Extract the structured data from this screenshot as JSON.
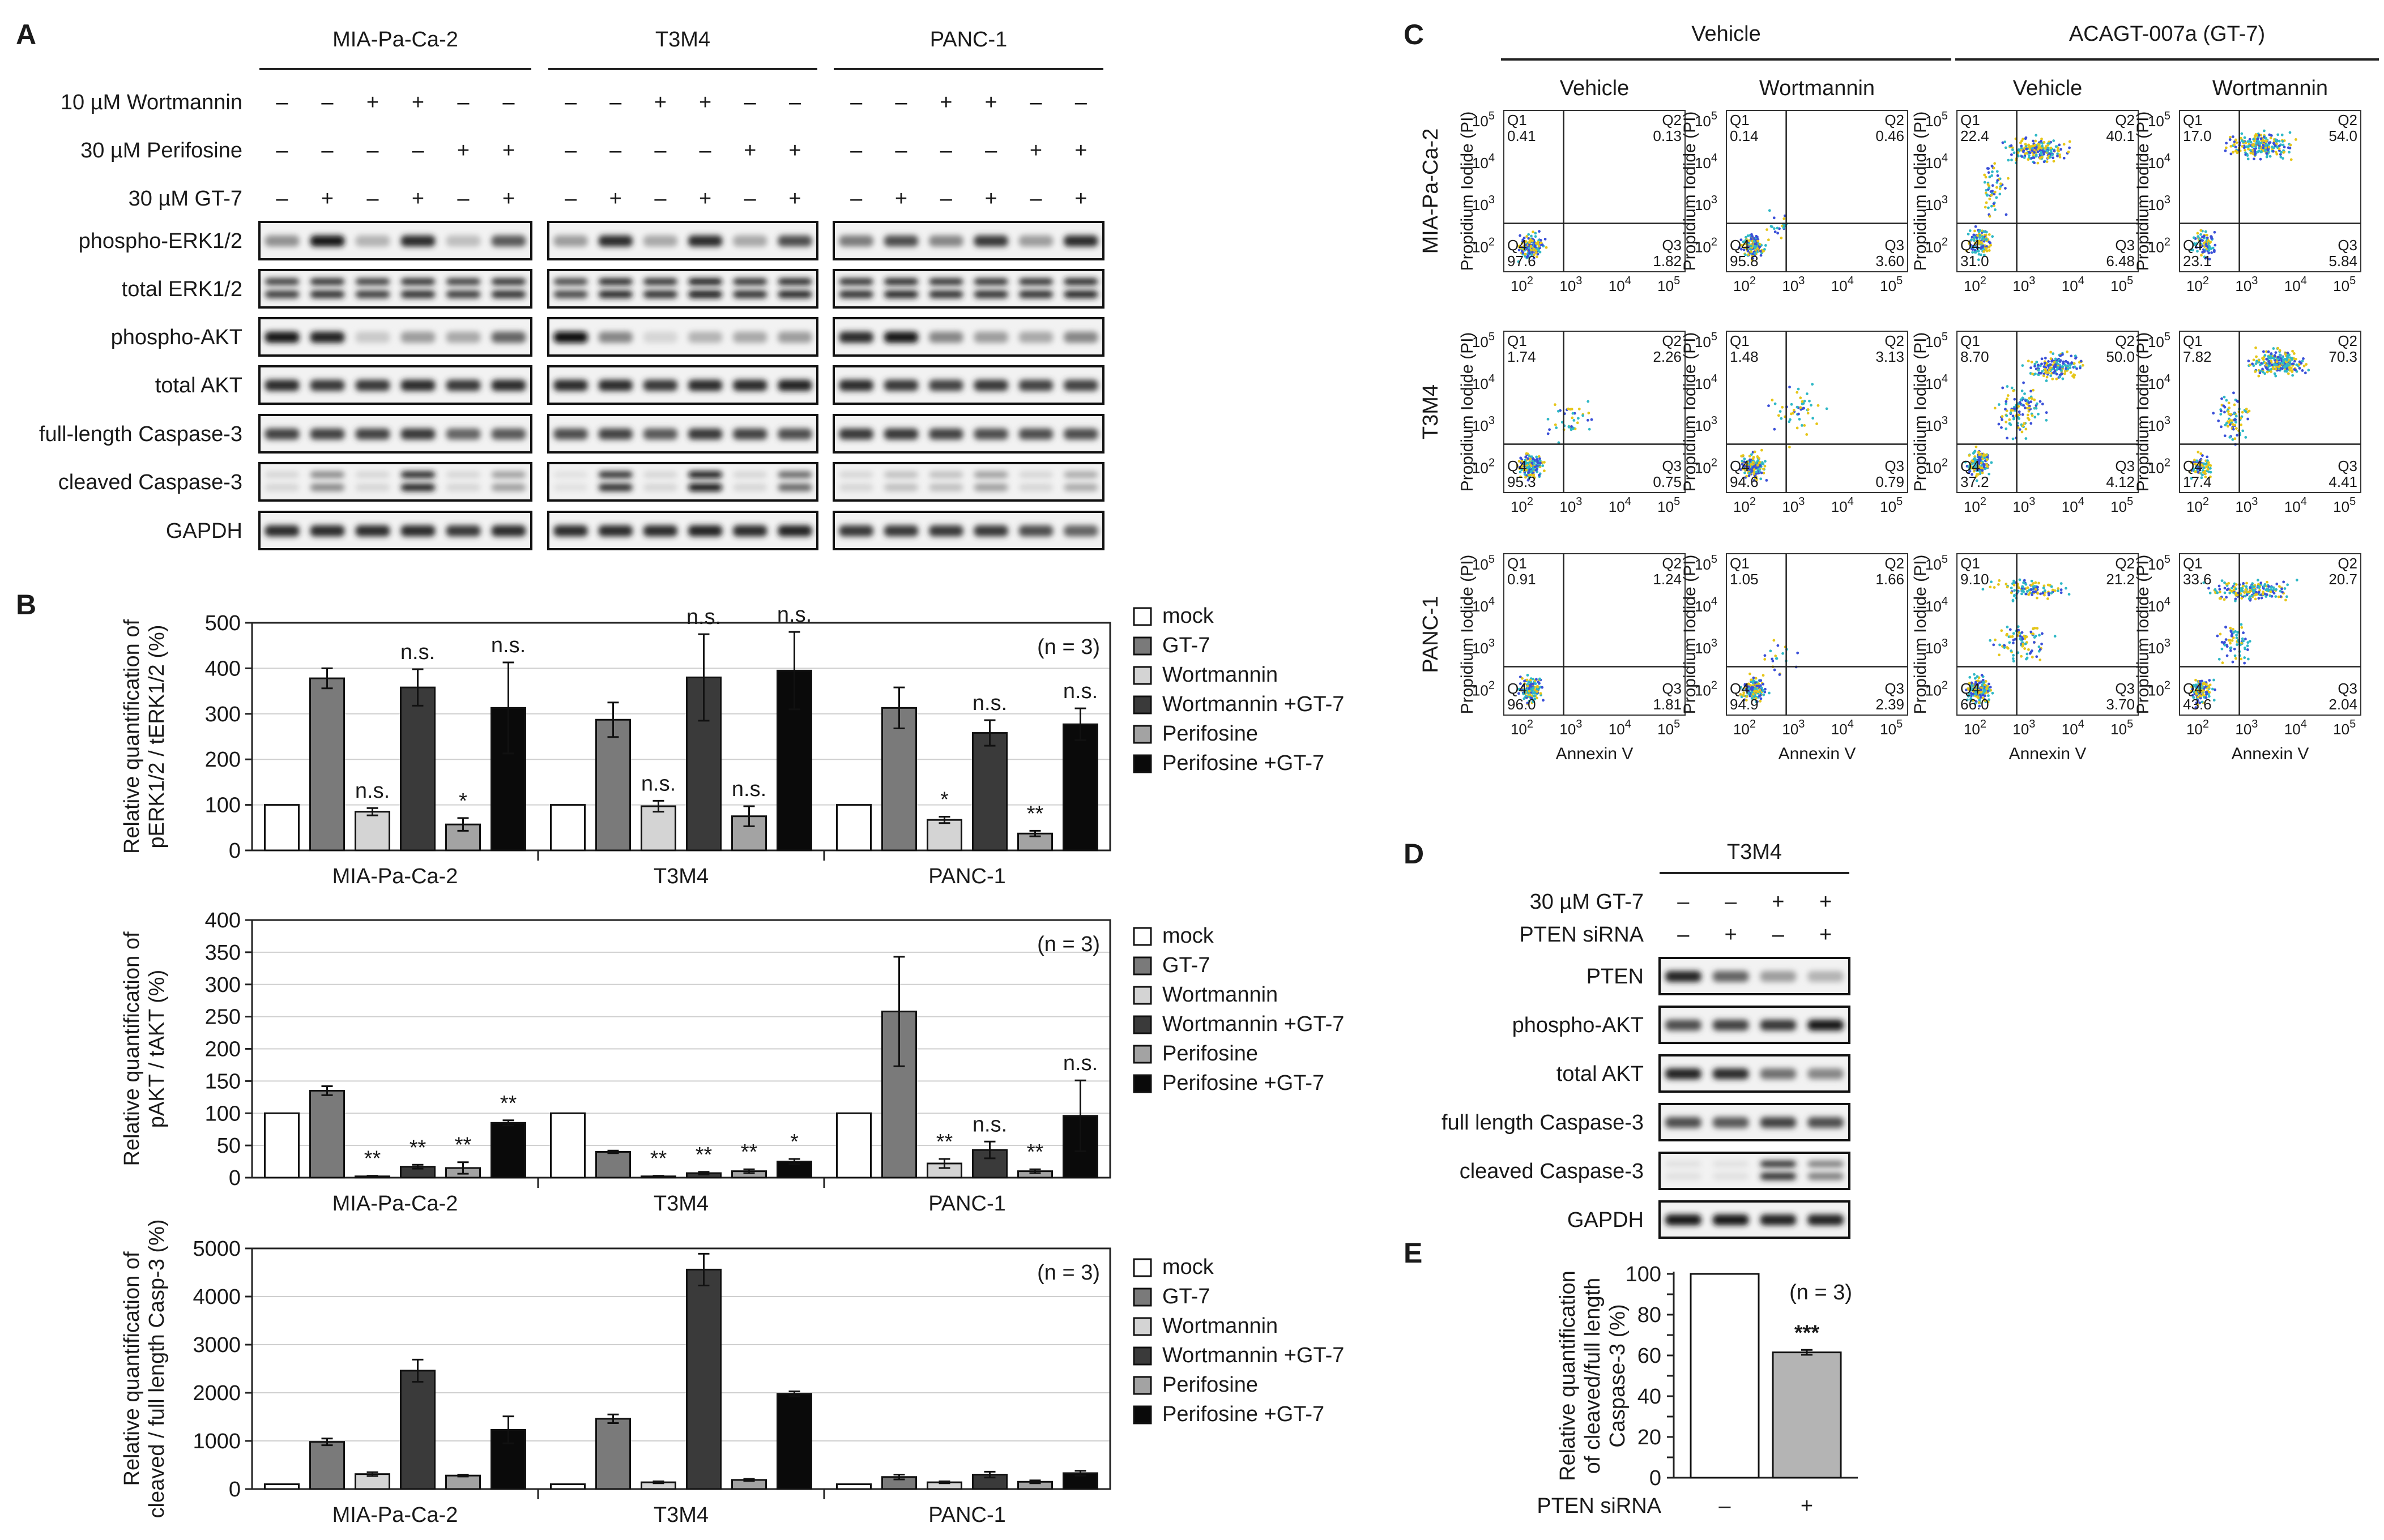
{
  "panel_labels": {
    "a": "A",
    "b": "B",
    "c": "C",
    "d": "D",
    "e": "E"
  },
  "panelA": {
    "cell_lines": [
      "MIA-Pa-Ca-2",
      "T3M4",
      "PANC-1"
    ],
    "treatments": [
      {
        "label": "10 µM Wortmannin",
        "marks": [
          "–",
          "–",
          "+",
          "+",
          "–",
          "–"
        ]
      },
      {
        "label": "30 µM Perifosine",
        "marks": [
          "–",
          "–",
          "–",
          "–",
          "+",
          "+"
        ]
      },
      {
        "label": "30 µM GT-7",
        "marks": [
          "–",
          "+",
          "–",
          "+",
          "–",
          "+"
        ]
      }
    ],
    "blots": [
      {
        "label": "phospho-ERK1/2",
        "intensity": [
          [
            0.4,
            0.95,
            0.25,
            0.85,
            0.2,
            0.65
          ],
          [
            0.35,
            0.85,
            0.3,
            0.85,
            0.3,
            0.7
          ],
          [
            0.5,
            0.7,
            0.45,
            0.8,
            0.35,
            0.85
          ]
        ]
      },
      {
        "label": "total ERK1/2",
        "intensity": [
          [
            0.8,
            0.85,
            0.8,
            0.85,
            0.8,
            0.85
          ],
          [
            0.75,
            0.9,
            0.85,
            0.95,
            0.85,
            0.9
          ],
          [
            0.85,
            0.9,
            0.85,
            0.85,
            0.85,
            0.9
          ]
        ]
      },
      {
        "label": "phospho-AKT",
        "intensity": [
          [
            0.95,
            0.9,
            0.15,
            0.35,
            0.3,
            0.6
          ],
          [
            1.0,
            0.45,
            0.1,
            0.25,
            0.3,
            0.35
          ],
          [
            0.85,
            0.95,
            0.45,
            0.35,
            0.3,
            0.45
          ]
        ]
      },
      {
        "label": "total AKT",
        "intensity": [
          [
            0.85,
            0.8,
            0.8,
            0.85,
            0.8,
            0.85
          ],
          [
            0.85,
            0.85,
            0.8,
            0.85,
            0.85,
            0.9
          ],
          [
            0.85,
            0.8,
            0.75,
            0.8,
            0.75,
            0.75
          ]
        ]
      },
      {
        "label": "full-length Caspase-3",
        "intensity": [
          [
            0.75,
            0.75,
            0.75,
            0.8,
            0.6,
            0.65
          ],
          [
            0.7,
            0.75,
            0.65,
            0.8,
            0.75,
            0.7
          ],
          [
            0.8,
            0.8,
            0.75,
            0.7,
            0.7,
            0.7
          ]
        ]
      },
      {
        "label": "cleaved Caspase-3",
        "intensity": [
          [
            0.1,
            0.45,
            0.1,
            0.9,
            0.1,
            0.35
          ],
          [
            0.05,
            0.85,
            0.1,
            1.0,
            0.1,
            0.6
          ],
          [
            0.1,
            0.2,
            0.2,
            0.35,
            0.1,
            0.3
          ]
        ]
      },
      {
        "label": "GAPDH",
        "intensity": [
          [
            0.85,
            0.85,
            0.85,
            0.85,
            0.8,
            0.85
          ],
          [
            0.85,
            0.85,
            0.85,
            0.9,
            0.85,
            0.9
          ],
          [
            0.8,
            0.8,
            0.8,
            0.8,
            0.7,
            0.6
          ]
        ]
      }
    ]
  },
  "legend_items": [
    "mock",
    "GT-7",
    "Wortmannin",
    "Wortmannin +GT-7",
    "Perifosine",
    "Perifosine +GT-7"
  ],
  "series_colors": [
    "#ffffff",
    "#7a7a7a",
    "#d4d4d4",
    "#3a3a3a",
    "#a3a3a3",
    "#0a0a0a"
  ],
  "chart_data": [
    {
      "type": "bar",
      "id": "B1",
      "ylabel": "Relative quantification of pERK1/2 / tERK1/2 (%)",
      "ylim": [
        0,
        500
      ],
      "yticks": [
        0,
        100,
        200,
        300,
        400,
        500
      ],
      "note": "(n = 3)",
      "categories": [
        "MIA-Pa-Ca-2",
        "T3M4",
        "PANC-1"
      ],
      "series": [
        {
          "name": "mock",
          "values": [
            100,
            100,
            100
          ],
          "errors": [
            0,
            0,
            0
          ],
          "sig": [
            "",
            "",
            ""
          ]
        },
        {
          "name": "GT-7",
          "values": [
            378,
            287,
            313
          ],
          "errors": [
            22,
            38,
            45
          ],
          "sig": [
            "",
            "",
            ""
          ]
        },
        {
          "name": "Wortmannin",
          "values": [
            85,
            97,
            67
          ],
          "errors": [
            8,
            12,
            7
          ],
          "sig": [
            "n.s.",
            "n.s.",
            "*"
          ]
        },
        {
          "name": "Wortmannin +GT-7",
          "values": [
            358,
            380,
            258
          ],
          "errors": [
            40,
            95,
            28
          ],
          "sig": [
            "n.s.",
            "n.s.",
            "n.s."
          ]
        },
        {
          "name": "Perifosine",
          "values": [
            57,
            75,
            37
          ],
          "errors": [
            14,
            22,
            6
          ],
          "sig": [
            "*",
            "n.s.",
            "**"
          ]
        },
        {
          "name": "Perifosine +GT-7",
          "values": [
            313,
            395,
            277
          ],
          "errors": [
            100,
            85,
            35
          ],
          "sig": [
            "n.s.",
            "n.s.",
            "n.s."
          ]
        }
      ]
    },
    {
      "type": "bar",
      "id": "B2",
      "ylabel": "Relative quantification of pAKT / tAKT (%)",
      "ylim": [
        0,
        400
      ],
      "yticks": [
        0,
        50,
        100,
        150,
        200,
        250,
        300,
        350,
        400
      ],
      "note": "(n = 3)",
      "categories": [
        "MIA-Pa-Ca-2",
        "T3M4",
        "PANC-1"
      ],
      "series": [
        {
          "name": "mock",
          "values": [
            100,
            100,
            100
          ],
          "errors": [
            0,
            0,
            0
          ],
          "sig": [
            "",
            "",
            ""
          ]
        },
        {
          "name": "GT-7",
          "values": [
            135,
            40,
            258
          ],
          "errors": [
            7,
            2,
            85
          ],
          "sig": [
            "",
            "",
            ""
          ]
        },
        {
          "name": "Wortmannin",
          "values": [
            2,
            2,
            22
          ],
          "errors": [
            1,
            1,
            7
          ],
          "sig": [
            "**",
            "**",
            "**"
          ]
        },
        {
          "name": "Wortmannin +GT-7",
          "values": [
            17,
            7,
            43
          ],
          "errors": [
            3,
            2,
            13
          ],
          "sig": [
            "**",
            "**",
            "n.s."
          ]
        },
        {
          "name": "Perifosine",
          "values": [
            15,
            10,
            10
          ],
          "errors": [
            9,
            3,
            3
          ],
          "sig": [
            "**",
            "**",
            "**"
          ]
        },
        {
          "name": "Perifosine +GT-7",
          "values": [
            85,
            25,
            96
          ],
          "errors": [
            4,
            4,
            55
          ],
          "sig": [
            "**",
            "*",
            "n.s."
          ]
        }
      ]
    },
    {
      "type": "bar",
      "id": "B3",
      "ylabel": "Relative quantification of cleaved / full length Casp-3 (%)",
      "ylim": [
        0,
        5000
      ],
      "yticks": [
        0,
        1000,
        2000,
        3000,
        4000,
        5000
      ],
      "note": "(n = 3)",
      "categories": [
        "MIA-Pa-Ca-2",
        "T3M4",
        "PANC-1"
      ],
      "series": [
        {
          "name": "mock",
          "values": [
            100,
            100,
            100
          ],
          "errors": [
            0,
            0,
            0
          ],
          "sig": [
            "",
            "",
            ""
          ]
        },
        {
          "name": "GT-7",
          "values": [
            980,
            1460,
            250
          ],
          "errors": [
            70,
            90,
            50
          ],
          "sig": [
            "",
            "",
            ""
          ]
        },
        {
          "name": "Wortmannin",
          "values": [
            310,
            140,
            140
          ],
          "errors": [
            40,
            20,
            20
          ],
          "sig": [
            "",
            "",
            ""
          ]
        },
        {
          "name": "Wortmannin +GT-7",
          "values": [
            2460,
            4560,
            300
          ],
          "errors": [
            230,
            330,
            60
          ],
          "sig": [
            "",
            "",
            ""
          ]
        },
        {
          "name": "Perifosine",
          "values": [
            280,
            190,
            150
          ],
          "errors": [
            20,
            20,
            30
          ],
          "sig": [
            "",
            "",
            ""
          ]
        },
        {
          "name": "Perifosine +GT-7",
          "values": [
            1230,
            1980,
            330
          ],
          "errors": [
            280,
            50,
            50
          ],
          "sig": [
            "",
            "",
            ""
          ]
        }
      ]
    },
    {
      "type": "bar",
      "id": "E",
      "ylabel": "Relative quantification of cleaved/full length Caspase-3 (%)",
      "ylim": [
        0,
        100
      ],
      "yticks": [
        0,
        10,
        20,
        30,
        40,
        50,
        60,
        70,
        80,
        90,
        100
      ],
      "note": "(n = 3)",
      "xlabel": "PTEN siRNA",
      "categories": [
        "–",
        "+"
      ],
      "values": [
        100,
        61.5
      ],
      "errors": [
        0,
        1.2
      ],
      "colors": [
        "#ffffff",
        "#b4b4b4"
      ],
      "sig": [
        "",
        "***"
      ]
    }
  ],
  "panelC": {
    "group_headers": [
      "Vehicle",
      "ACAGT-007a (GT-7)"
    ],
    "column_headers": [
      "Vehicle",
      "Wortmannin",
      "Vehicle",
      "Wortmannin"
    ],
    "row_labels": [
      "MIA-Pa-Ca-2",
      "T3M4",
      "PANC-1"
    ],
    "ylabel": "Propidium Iodide (PI)",
    "xlabel": "Annexin V",
    "tick_labels": [
      "10",
      "2",
      "3",
      "4",
      "5"
    ],
    "quadrants": [
      [
        [
          "0.41",
          "0.13",
          "97.6",
          "1.82"
        ],
        [
          "0.14",
          "0.46",
          "95.8",
          "3.60"
        ],
        [
          "22.4",
          "40.1",
          "31.0",
          "6.48"
        ],
        [
          "17.0",
          "54.0",
          "23.1",
          "5.84"
        ]
      ],
      [
        [
          "1.74",
          "2.26",
          "95.3",
          "0.75"
        ],
        [
          "1.48",
          "3.13",
          "94.6",
          "0.79"
        ],
        [
          "8.70",
          "50.0",
          "37.2",
          "4.12"
        ],
        [
          "7.82",
          "70.3",
          "17.4",
          "4.41"
        ]
      ],
      [
        [
          "0.91",
          "1.24",
          "96.0",
          "1.81"
        ],
        [
          "1.05",
          "1.66",
          "94.9",
          "2.39"
        ],
        [
          "9.10",
          "21.2",
          "66.0",
          "3.70"
        ],
        [
          "33.6",
          "20.7",
          "43.6",
          "2.04"
        ]
      ]
    ],
    "quadrant_names": [
      "Q1",
      "Q2",
      "Q4",
      "Q3"
    ]
  },
  "panelD": {
    "cell_line": "T3M4",
    "treatments": [
      {
        "label": "30 µM GT-7",
        "marks": [
          "–",
          "–",
          "+",
          "+"
        ]
      },
      {
        "label": "PTEN siRNA",
        "marks": [
          "–",
          "+",
          "–",
          "+"
        ]
      }
    ],
    "blots": [
      {
        "label": "PTEN",
        "intensity": [
          0.9,
          0.6,
          0.35,
          0.25
        ]
      },
      {
        "label": "phospho-AKT",
        "intensity": [
          0.7,
          0.75,
          0.8,
          0.95
        ]
      },
      {
        "label": "total AKT",
        "intensity": [
          0.9,
          0.85,
          0.55,
          0.45
        ]
      },
      {
        "label": "full length Caspase-3",
        "intensity": [
          0.7,
          0.65,
          0.75,
          0.7
        ]
      },
      {
        "label": "cleaved Caspase-3",
        "intensity": [
          0.05,
          0.05,
          0.85,
          0.5
        ]
      },
      {
        "label": "GAPDH",
        "intensity": [
          0.95,
          0.95,
          0.9,
          0.9
        ]
      }
    ]
  }
}
